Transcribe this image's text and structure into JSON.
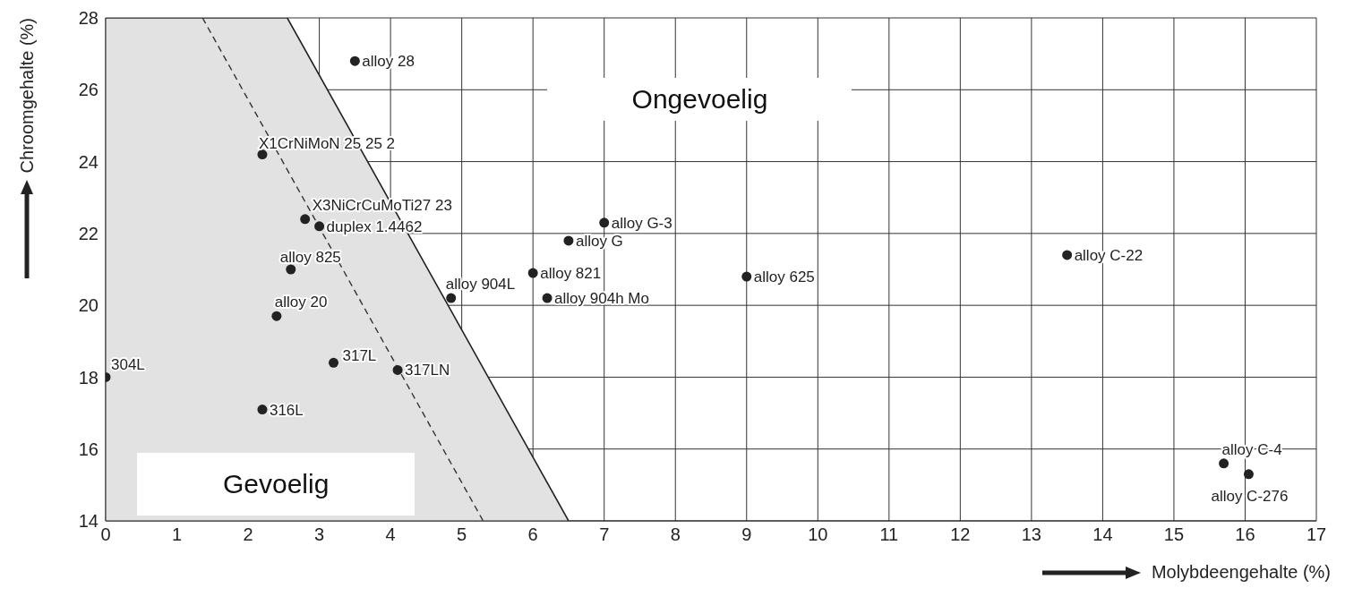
{
  "chart_data": {
    "type": "scatter",
    "xlabel": "Molybdeengehalte (%)",
    "ylabel": "Chroomgehalte (%)",
    "xlim": [
      0,
      17
    ],
    "xticks": [
      0,
      1,
      2,
      3,
      4,
      5,
      6,
      7,
      8,
      9,
      10,
      11,
      12,
      13,
      14,
      15,
      16,
      17
    ],
    "ylim": [
      14,
      28
    ],
    "yticks": [
      14,
      16,
      18,
      20,
      22,
      24,
      26,
      28
    ],
    "grid": true,
    "marker": "circle",
    "annotations": [
      "Ongevoelig",
      "Gevoelig"
    ],
    "series": [
      {
        "name": "304L",
        "color": "#222222",
        "x": [
          0
        ],
        "values": [
          18.0
        ]
      },
      {
        "name": "alloy 28",
        "color": "#222222",
        "x": [
          3.5
        ],
        "values": [
          26.8
        ]
      },
      {
        "name": "X1CrNiMoN 25 25 2",
        "color": "#222222",
        "x": [
          2.2
        ],
        "values": [
          24.2
        ]
      },
      {
        "name": "X3NiCrCuMoTi27 23",
        "color": "#222222",
        "x": [
          2.8
        ],
        "values": [
          22.4
        ]
      },
      {
        "name": "duplex 1.4462",
        "color": "#222222",
        "x": [
          3.0
        ],
        "values": [
          22.2
        ]
      },
      {
        "name": "alloy 825",
        "color": "#222222",
        "x": [
          2.6
        ],
        "values": [
          21.0
        ]
      },
      {
        "name": "alloy 20",
        "color": "#222222",
        "x": [
          2.4
        ],
        "values": [
          19.7
        ]
      },
      {
        "name": "317L",
        "color": "#222222",
        "x": [
          3.2
        ],
        "values": [
          18.4
        ]
      },
      {
        "name": "317LN",
        "color": "#222222",
        "x": [
          4.1
        ],
        "values": [
          18.2
        ]
      },
      {
        "name": "316L",
        "color": "#222222",
        "x": [
          2.2
        ],
        "values": [
          17.1
        ]
      },
      {
        "name": "alloy 904L",
        "color": "#222222",
        "x": [
          4.85
        ],
        "values": [
          20.2
        ]
      },
      {
        "name": "alloy 821",
        "color": "#222222",
        "x": [
          6.0
        ],
        "values": [
          20.9
        ]
      },
      {
        "name": "alloy 904h Mo",
        "color": "#222222",
        "x": [
          6.2
        ],
        "values": [
          20.2
        ]
      },
      {
        "name": "alloy G",
        "color": "#222222",
        "x": [
          6.5
        ],
        "values": [
          21.8
        ]
      },
      {
        "name": "alloy G-3",
        "color": "#222222",
        "x": [
          7.0
        ],
        "values": [
          22.3
        ]
      },
      {
        "name": "alloy 625",
        "color": "#222222",
        "x": [
          9.0
        ],
        "values": [
          20.8
        ]
      },
      {
        "name": "alloy C-22",
        "color": "#222222",
        "x": [
          13.5
        ],
        "values": [
          21.4
        ]
      },
      {
        "name": "alloy C-4",
        "color": "#222222",
        "x": [
          15.7
        ],
        "values": [
          15.6
        ]
      },
      {
        "name": "alloy C-276",
        "color": "#222222",
        "x": [
          16.05
        ],
        "values": [
          15.3
        ]
      },
      {
        "type": "area",
        "color": "#e2e2e2",
        "marker": "none",
        "x": [
          0,
          2.55,
          6.5
        ],
        "values": [
          28,
          28,
          14
        ]
      },
      {
        "type": "line",
        "color": "#333333",
        "line_style": "dashed",
        "marker": "none",
        "x": [
          1.36,
          5.3
        ],
        "values": [
          28,
          14
        ]
      }
    ]
  }
}
